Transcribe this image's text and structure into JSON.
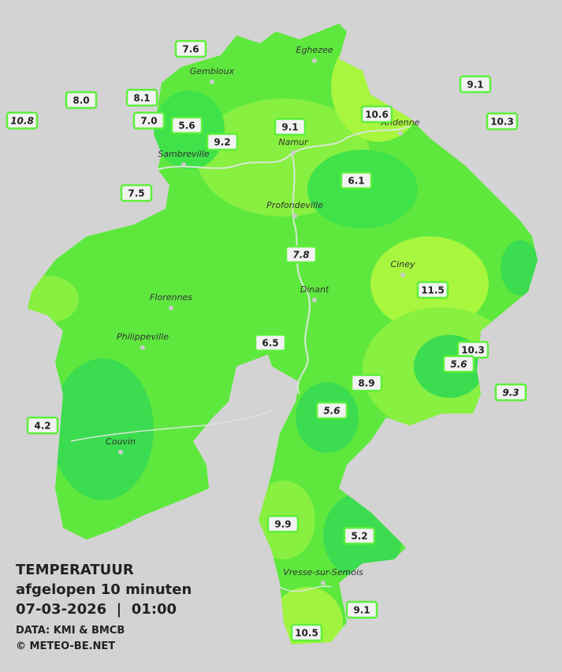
{
  "title": {
    "heading": "TEMPERATUUR",
    "subtitle": "afgelopen 10 minuten",
    "datetime": "07-03-2026  |  01:00",
    "source": "DATA: KMI & BMCB",
    "credit": "© METEO-BE.NET"
  },
  "cities": [
    "Eghezee",
    "Gembloux",
    "Andenne",
    "Namur",
    "Sambreville",
    "Profondeville",
    "Ciney",
    "Dinant",
    "Florennes",
    "Philippeville",
    "Couvin",
    "Vresse-sur-Semois"
  ],
  "stations": [
    "7.6",
    "8.0",
    "8.1",
    "10.8",
    "7.0",
    "5.6",
    "9.2",
    "9.1",
    "10.6",
    "9.1",
    "10.3",
    "7.5",
    "6.1",
    "7.8",
    "11.5",
    "6.5",
    "10.3",
    "5.6",
    "8.9",
    "9.3",
    "5.6",
    "4.2",
    "9.9",
    "5.2",
    "9.1",
    "10.5"
  ]
}
